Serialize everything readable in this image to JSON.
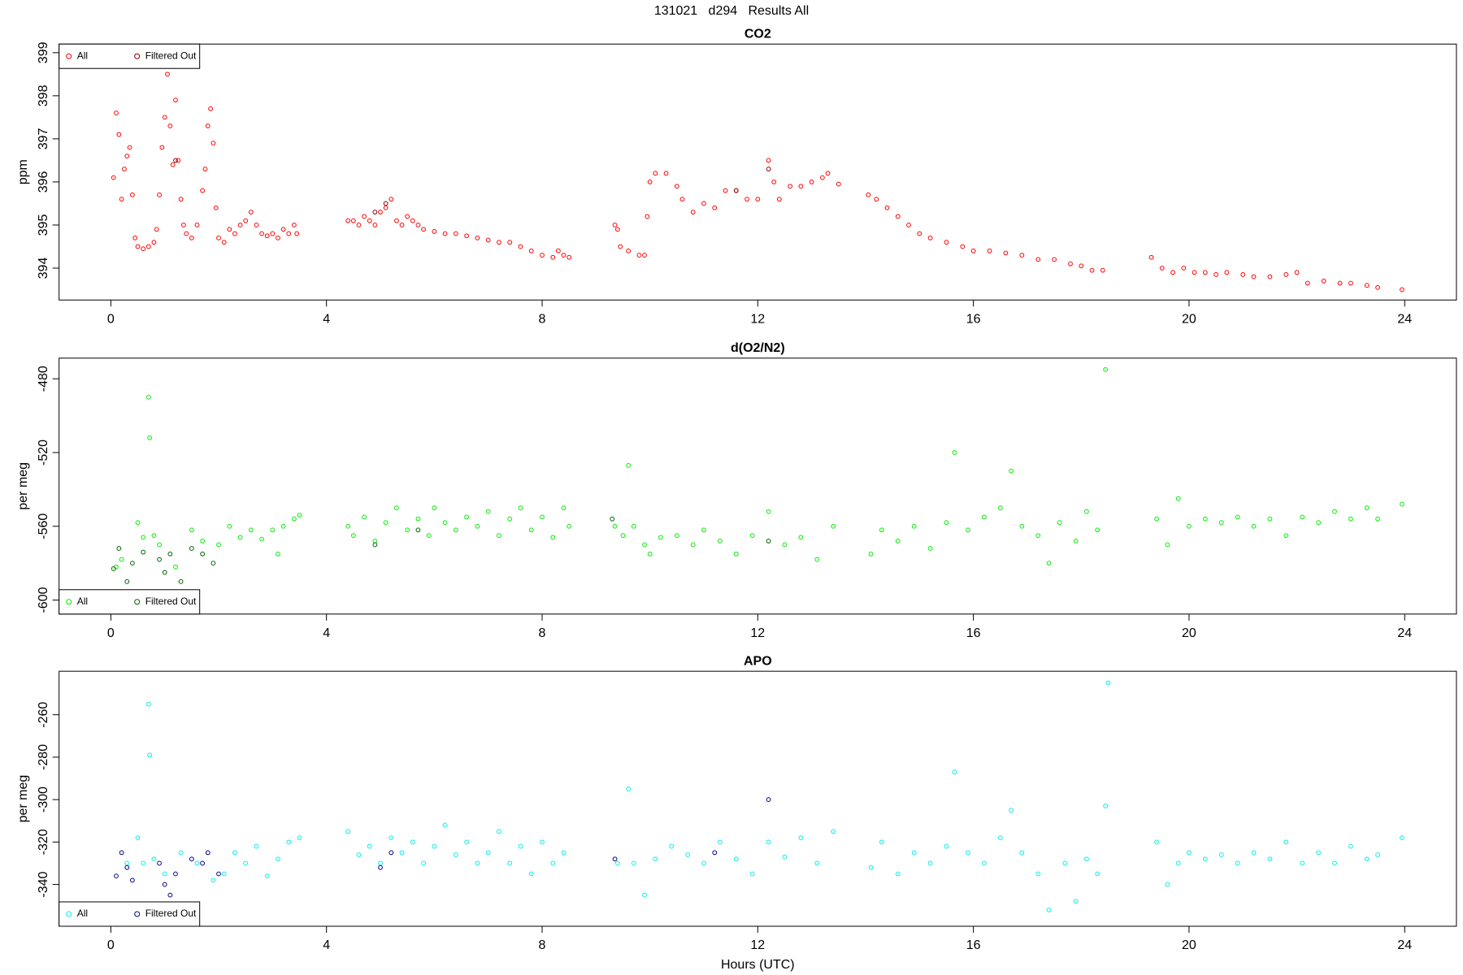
{
  "title": "131021   d294   Results All",
  "chart_data": [
    {
      "type": "scatter",
      "title": "CO2",
      "ylabel": "ppm",
      "legend": "topleft",
      "xlim": [
        -0.96,
        24.96
      ],
      "xticks": [
        0,
        4,
        8,
        12,
        16,
        20,
        24
      ],
      "ylim": [
        393.26,
        399.2
      ],
      "yticks": [
        394,
        395,
        396,
        397,
        398,
        399
      ],
      "series": [
        {
          "name": "All",
          "color": "#ff0000",
          "x": [
            0.05,
            0.1,
            0.15,
            0.2,
            0.25,
            0.3,
            0.35,
            0.4,
            0.45,
            0.5,
            0.6,
            0.7,
            0.8,
            0.85,
            0.9,
            0.95,
            1.0,
            1.05,
            1.1,
            1.15,
            1.2,
            1.25,
            1.3,
            1.35,
            1.4,
            1.5,
            1.6,
            1.7,
            1.75,
            1.8,
            1.85,
            1.9,
            1.95,
            2.0,
            2.1,
            2.2,
            2.3,
            2.4,
            2.5,
            2.6,
            2.7,
            2.8,
            2.9,
            3.0,
            3.1,
            3.2,
            3.3,
            3.4,
            3.45,
            4.4,
            4.5,
            4.6,
            4.7,
            4.8,
            4.9,
            5.0,
            5.1,
            5.2,
            5.3,
            5.4,
            5.5,
            5.6,
            5.7,
            5.8,
            6.0,
            6.2,
            6.4,
            6.6,
            6.8,
            7.0,
            7.2,
            7.4,
            7.6,
            7.8,
            8.0,
            8.2,
            8.3,
            8.4,
            8.5,
            9.35,
            9.4,
            9.45,
            9.6,
            9.8,
            9.9,
            9.95,
            10.0,
            10.1,
            10.3,
            10.5,
            10.6,
            10.8,
            11.0,
            11.2,
            11.4,
            11.6,
            11.8,
            12.0,
            12.2,
            12.3,
            12.4,
            12.6,
            12.8,
            13.0,
            13.2,
            13.3,
            13.5,
            14.05,
            14.2,
            14.4,
            14.6,
            14.8,
            15.0,
            15.2,
            15.5,
            15.8,
            16.0,
            16.3,
            16.6,
            16.9,
            17.2,
            17.5,
            17.8,
            18.0,
            18.2,
            18.4,
            19.3,
            19.5,
            19.7,
            19.9,
            20.1,
            20.3,
            20.5,
            20.7,
            21.0,
            21.2,
            21.5,
            21.8,
            22.0,
            22.2,
            22.5,
            22.8,
            23.0,
            23.3,
            23.5,
            23.95
          ],
          "values": [
            396.1,
            397.6,
            397.1,
            395.6,
            396.3,
            396.6,
            396.8,
            395.7,
            394.7,
            394.5,
            394.45,
            394.5,
            394.6,
            394.9,
            395.7,
            396.8,
            397.5,
            398.5,
            397.3,
            396.4,
            397.9,
            396.5,
            395.6,
            395.0,
            394.8,
            394.7,
            395.0,
            395.8,
            396.3,
            397.3,
            397.7,
            396.9,
            395.4,
            394.7,
            394.6,
            394.9,
            394.8,
            395.0,
            395.1,
            395.3,
            395.0,
            394.8,
            394.75,
            394.8,
            394.7,
            394.9,
            394.8,
            395.0,
            394.8,
            395.1,
            395.1,
            395.0,
            395.2,
            395.1,
            395.0,
            395.3,
            395.4,
            395.6,
            395.1,
            395.0,
            395.2,
            395.1,
            395.0,
            394.9,
            394.85,
            394.8,
            394.8,
            394.75,
            394.7,
            394.65,
            394.6,
            394.6,
            394.5,
            394.4,
            394.3,
            394.25,
            394.4,
            394.3,
            394.25,
            395.0,
            394.9,
            394.5,
            394.4,
            394.3,
            394.3,
            395.2,
            396.0,
            396.2,
            396.2,
            395.9,
            395.6,
            395.3,
            395.5,
            395.4,
            395.8,
            395.8,
            395.6,
            395.6,
            396.5,
            396.0,
            395.6,
            395.9,
            395.9,
            396.0,
            396.1,
            396.2,
            395.95,
            395.7,
            395.6,
            395.4,
            395.2,
            395.0,
            394.8,
            394.7,
            394.6,
            394.5,
            394.4,
            394.4,
            394.35,
            394.3,
            394.2,
            394.2,
            394.1,
            394.05,
            393.95,
            393.95,
            394.25,
            394.0,
            393.9,
            394.0,
            393.9,
            393.9,
            393.85,
            393.9,
            393.85,
            393.8,
            393.8,
            393.85,
            393.9,
            393.65,
            393.7,
            393.65,
            393.65,
            393.6,
            393.55,
            393.5
          ]
        },
        {
          "name": "Filtered Out",
          "color": "#8b0000",
          "x": [
            1.2,
            4.9,
            5.1,
            11.6,
            12.2
          ],
          "values": [
            396.5,
            395.3,
            395.5,
            395.8,
            396.3
          ]
        }
      ]
    },
    {
      "type": "scatter",
      "title": "d(O2/N2)",
      "ylabel": "per meg",
      "legend": "bottomleft",
      "xlim": [
        -0.96,
        24.96
      ],
      "xticks": [
        0,
        4,
        8,
        12,
        16,
        20,
        24
      ],
      "ylim": [
        -607.6,
        -468.8
      ],
      "yticks": [
        -600,
        -560,
        -520,
        -480
      ],
      "series": [
        {
          "name": "All",
          "color": "#00ee00",
          "x": [
            0.1,
            0.2,
            0.5,
            0.6,
            0.7,
            0.72,
            0.8,
            0.9,
            1.2,
            1.5,
            1.7,
            2.0,
            2.2,
            2.4,
            2.6,
            2.8,
            3.0,
            3.1,
            3.2,
            3.4,
            3.5,
            4.4,
            4.5,
            4.7,
            4.9,
            5.1,
            5.3,
            5.5,
            5.7,
            5.9,
            6.0,
            6.2,
            6.4,
            6.6,
            6.8,
            7.0,
            7.2,
            7.4,
            7.6,
            7.8,
            8.0,
            8.2,
            8.4,
            8.5,
            9.35,
            9.5,
            9.6,
            9.7,
            9.9,
            10.0,
            10.2,
            10.5,
            10.8,
            11.0,
            11.3,
            11.6,
            11.9,
            12.2,
            12.5,
            12.8,
            13.1,
            13.4,
            14.1,
            14.3,
            14.6,
            14.9,
            15.2,
            15.5,
            15.65,
            15.9,
            16.2,
            16.5,
            16.7,
            16.9,
            17.2,
            17.4,
            17.6,
            17.9,
            18.1,
            18.3,
            18.45,
            19.4,
            19.6,
            19.8,
            20.0,
            20.3,
            20.6,
            20.9,
            21.2,
            21.5,
            21.8,
            22.1,
            22.4,
            22.7,
            23.0,
            23.3,
            23.5,
            23.95
          ],
          "values": [
            -582,
            -578,
            -558,
            -566,
            -490,
            -512,
            -565,
            -570,
            -582,
            -562,
            -568,
            -570,
            -560,
            -566,
            -562,
            -567,
            -562,
            -575,
            -560,
            -556,
            -554,
            -560,
            -565,
            -555,
            -568,
            -558,
            -550,
            -562,
            -556,
            -565,
            -550,
            -558,
            -562,
            -555,
            -560,
            -552,
            -565,
            -556,
            -550,
            -562,
            -555,
            -566,
            -550,
            -560,
            -560,
            -565,
            -527,
            -560,
            -570,
            -575,
            -566,
            -565,
            -570,
            -562,
            -568,
            -575,
            -565,
            -552,
            -570,
            -566,
            -578,
            -560,
            -575,
            -562,
            -568,
            -560,
            -572,
            -558,
            -520,
            -562,
            -555,
            -550,
            -530,
            -560,
            -565,
            -580,
            -558,
            -568,
            -552,
            -562,
            -475,
            -556,
            -570,
            -545,
            -560,
            -556,
            -558,
            -555,
            -560,
            -556,
            -565,
            -555,
            -558,
            -552,
            -556,
            -550,
            -556,
            -548
          ]
        },
        {
          "name": "Filtered Out",
          "color": "#006400",
          "x": [
            0.05,
            0.15,
            0.3,
            0.4,
            0.6,
            0.9,
            1.0,
            1.1,
            1.3,
            1.5,
            1.7,
            1.9,
            4.9,
            5.7,
            9.3,
            12.2
          ],
          "values": [
            -583,
            -572,
            -590,
            -580,
            -574,
            -578,
            -585,
            -575,
            -590,
            -572,
            -575,
            -580,
            -570,
            -562,
            -556,
            -568
          ]
        }
      ]
    },
    {
      "type": "scatter",
      "title": "APO",
      "ylabel": "per meg",
      "xlabel": "Hours (UTC)",
      "legend": "bottomleft",
      "xlim": [
        -0.96,
        24.96
      ],
      "xticks": [
        0,
        4,
        8,
        12,
        16,
        20,
        24
      ],
      "ylim": [
        -359.7,
        -239.5
      ],
      "yticks": [
        -340,
        -320,
        -300,
        -280,
        -260
      ],
      "series": [
        {
          "name": "All",
          "color": "#00eeee",
          "x": [
            0.3,
            0.5,
            0.6,
            0.7,
            0.72,
            0.8,
            1.0,
            1.3,
            1.6,
            1.9,
            2.1,
            2.3,
            2.5,
            2.7,
            2.9,
            3.1,
            3.3,
            3.5,
            4.4,
            4.6,
            4.8,
            5.0,
            5.2,
            5.4,
            5.6,
            5.8,
            6.0,
            6.2,
            6.4,
            6.6,
            6.8,
            7.0,
            7.2,
            7.4,
            7.6,
            7.8,
            8.0,
            8.2,
            8.4,
            9.4,
            9.6,
            9.7,
            9.9,
            10.1,
            10.4,
            10.7,
            11.0,
            11.3,
            11.6,
            11.9,
            12.2,
            12.5,
            12.8,
            13.1,
            13.4,
            14.1,
            14.3,
            14.6,
            14.9,
            15.2,
            15.5,
            15.65,
            15.9,
            16.2,
            16.5,
            16.7,
            16.9,
            17.2,
            17.4,
            17.7,
            17.9,
            18.1,
            18.3,
            18.45,
            18.5,
            19.4,
            19.6,
            19.8,
            20.0,
            20.3,
            20.6,
            20.9,
            21.2,
            21.5,
            21.8,
            22.1,
            22.4,
            22.7,
            23.0,
            23.3,
            23.5,
            23.95
          ],
          "values": [
            -330,
            -318,
            -330,
            -255,
            -279,
            -328,
            -335,
            -325,
            -330,
            -338,
            -335,
            -325,
            -330,
            -322,
            -336,
            -328,
            -320,
            -318,
            -315,
            -326,
            -322,
            -330,
            -318,
            -325,
            -320,
            -330,
            -322,
            -312,
            -326,
            -320,
            -330,
            -325,
            -315,
            -330,
            -322,
            -335,
            -320,
            -330,
            -325,
            -330,
            -295,
            -330,
            -345,
            -328,
            -322,
            -326,
            -330,
            -320,
            -328,
            -335,
            -320,
            -327,
            -318,
            -330,
            -315,
            -332,
            -320,
            -335,
            -325,
            -330,
            -322,
            -287,
            -325,
            -330,
            -318,
            -305,
            -325,
            -335,
            -352,
            -330,
            -348,
            -328,
            -335,
            -303,
            -245,
            -320,
            -340,
            -330,
            -325,
            -328,
            -326,
            -330,
            -325,
            -328,
            -320,
            -330,
            -325,
            -330,
            -322,
            -328,
            -326,
            -318
          ]
        },
        {
          "name": "Filtered Out",
          "color": "#00008b",
          "x": [
            0.1,
            0.2,
            0.3,
            0.4,
            0.9,
            1.0,
            1.1,
            1.2,
            1.5,
            1.7,
            1.8,
            2.0,
            5.0,
            5.2,
            9.35,
            11.2,
            12.2
          ],
          "values": [
            -336,
            -325,
            -332,
            -338,
            -330,
            -340,
            -345,
            -335,
            -328,
            -330,
            -325,
            -335,
            -332,
            -325,
            -328,
            -325,
            -300
          ]
        }
      ]
    }
  ]
}
